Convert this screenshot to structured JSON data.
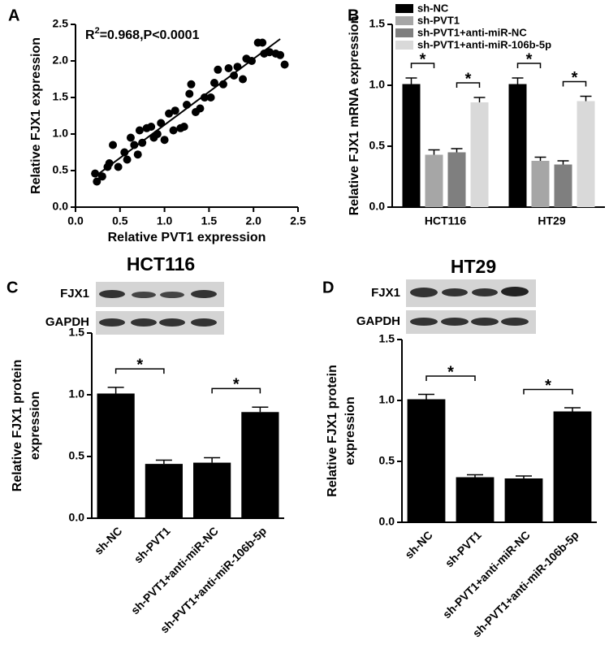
{
  "chart_data": [
    {
      "type": "scatter",
      "label": "A",
      "xlabel": "Relative PVT1 expression",
      "ylabel": "Relative FJX1 expression",
      "annotation": [
        "R",
        "2",
        "=0.968,P<0.0001"
      ],
      "x": [
        0.22,
        0.24,
        0.3,
        0.36,
        0.38,
        0.42,
        0.48,
        0.55,
        0.58,
        0.62,
        0.66,
        0.7,
        0.72,
        0.75,
        0.8,
        0.85,
        0.88,
        0.92,
        0.96,
        1.0,
        1.05,
        1.1,
        1.12,
        1.18,
        1.22,
        1.25,
        1.28,
        1.3,
        1.35,
        1.4,
        1.45,
        1.52,
        1.56,
        1.6,
        1.66,
        1.72,
        1.78,
        1.82,
        1.88,
        1.92,
        1.98,
        2.05,
        2.1,
        2.12,
        2.18,
        2.25,
        2.3,
        2.35
      ],
      "y": [
        0.46,
        0.35,
        0.42,
        0.55,
        0.6,
        0.85,
        0.55,
        0.75,
        0.65,
        0.95,
        0.85,
        0.72,
        1.05,
        0.88,
        1.08,
        1.1,
        0.95,
        1.0,
        1.15,
        0.92,
        1.28,
        1.05,
        1.32,
        1.08,
        1.1,
        1.4,
        1.55,
        1.68,
        1.3,
        1.35,
        1.5,
        1.5,
        1.7,
        1.88,
        1.68,
        1.9,
        1.8,
        1.92,
        1.75,
        2.03,
        2.0,
        2.25,
        2.25,
        2.1,
        2.12,
        2.1,
        2.08,
        1.95
      ],
      "fit_line": {
        "x": [
          0.22,
          2.3
        ],
        "y": [
          0.42,
          2.3
        ]
      },
      "color": "#000000",
      "xlim": [
        0,
        2.5
      ],
      "xticks": [
        {
          "value": 0,
          "label": "0.0"
        },
        0.5,
        {
          "value": 1,
          "label": "1.0"
        },
        1.5,
        {
          "value": 2,
          "label": "2.0"
        },
        2.5
      ],
      "ylim": [
        0,
        2.5
      ],
      "yticks": [
        {
          "value": 0,
          "label": "0.0"
        },
        0.5,
        {
          "value": 1,
          "label": "1.0"
        },
        1.5,
        {
          "value": 2,
          "label": "2.0"
        },
        2.5
      ]
    },
    {
      "type": "grouped-bar",
      "label": "B",
      "ylabel": "Relative FJX1 mRNA expression",
      "categories": [
        "HCT116",
        "HT29"
      ],
      "series": [
        {
          "name": "sh-NC",
          "color": "#000000",
          "values": [
            1.01,
            1.01
          ],
          "errors": [
            0.05,
            0.05
          ]
        },
        {
          "name": "sh-PVT1",
          "color": "#a6a6a6",
          "values": [
            0.43,
            0.38
          ],
          "errors": [
            0.04,
            0.03
          ]
        },
        {
          "name": "sh-PVT1+anti-miR-NC",
          "color": "#7f7f7f",
          "values": [
            0.45,
            0.35
          ],
          "errors": [
            0.03,
            0.03
          ]
        },
        {
          "name": "sh-PVT1+anti-miR-106b-5p",
          "color": "#d9d9d9",
          "values": [
            0.86,
            0.87
          ],
          "errors": [
            0.04,
            0.04
          ]
        }
      ],
      "brackets": [
        {
          "group": 0,
          "series": [
            0,
            1
          ],
          "label": "*"
        },
        {
          "group": 0,
          "series": [
            2,
            3
          ],
          "label": "*"
        },
        {
          "group": 1,
          "series": [
            0,
            1
          ],
          "label": "*"
        },
        {
          "group": 1,
          "series": [
            2,
            3
          ],
          "label": "*"
        }
      ],
      "ylim": [
        0,
        1.5
      ],
      "yticks": [
        {
          "value": 0,
          "label": "0.0"
        },
        0.5,
        {
          "value": 1,
          "label": "1.0"
        },
        1.5
      ]
    },
    {
      "type": "bar",
      "label": "C",
      "title": "HCT116",
      "blot_labels": [
        "FJX1",
        "GAPDH"
      ],
      "ylabel": [
        "Relative FJX1 protein",
        "expression"
      ],
      "categories": [
        "sh-NC",
        "sh-PVT1",
        "sh-PVT1+anti-miR-NC",
        "sh-PVT1+anti-miR-106b-5p"
      ],
      "values": [
        1.01,
        0.44,
        0.45,
        0.86
      ],
      "errors": [
        0.05,
        0.03,
        0.04,
        0.04
      ],
      "color": "#000000",
      "brackets": [
        {
          "bars": [
            0,
            1
          ],
          "label": "*"
        },
        {
          "bars": [
            2,
            3
          ],
          "label": "*"
        }
      ],
      "ylim": [
        0,
        1.5
      ],
      "yticks": [
        {
          "value": 0,
          "label": "0.0"
        },
        0.5,
        {
          "value": 1,
          "label": "1.0"
        },
        1.5
      ]
    },
    {
      "type": "bar",
      "label": "D",
      "title": "HT29",
      "blot_labels": [
        "FJX1",
        "GAPDH"
      ],
      "ylabel": [
        "Relative FJX1 protein",
        "expression"
      ],
      "categories": [
        "sh-NC",
        "sh-PVT1",
        "sh-PVT1+anti-miR-NC",
        "sh-PVT1+anti-miR-106b-5p"
      ],
      "values": [
        1.01,
        0.37,
        0.36,
        0.91
      ],
      "errors": [
        0.04,
        0.02,
        0.02,
        0.03
      ],
      "color": "#000000",
      "brackets": [
        {
          "bars": [
            0,
            1
          ],
          "label": "*"
        },
        {
          "bars": [
            2,
            3
          ],
          "label": "*"
        }
      ],
      "ylim": [
        0,
        1.5
      ],
      "yticks": [
        {
          "value": 0,
          "label": "0.0"
        },
        0.5,
        {
          "value": 1,
          "label": "1.0"
        },
        1.5
      ]
    }
  ]
}
